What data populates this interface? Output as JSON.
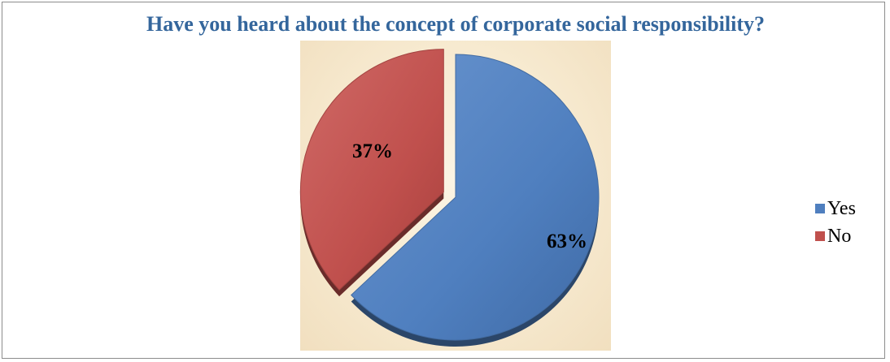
{
  "chart_data": {
    "type": "pie",
    "title": "Have you heard about the concept of corporate social responsibility?",
    "categories": [
      "Yes",
      "No"
    ],
    "values": [
      63,
      37
    ],
    "labels": [
      "63%",
      "37%"
    ],
    "colors": [
      "#4f7fbf",
      "#c0504d"
    ],
    "title_color": "#34669c",
    "plot_background": "#f7ead0",
    "exploded_slice": "No",
    "legend_position": "right"
  }
}
